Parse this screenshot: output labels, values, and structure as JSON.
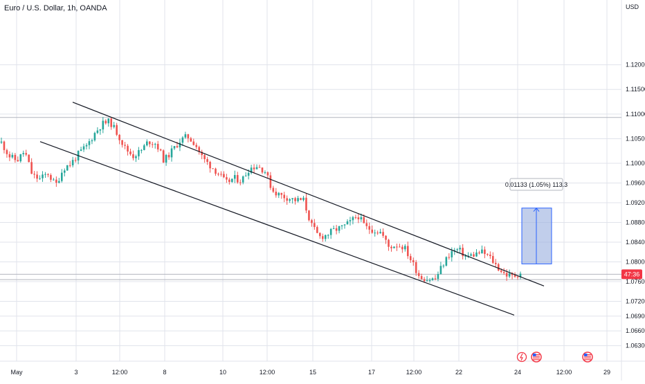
{
  "chart_title": "Euro / U.S. Dollar, 1h, OANDA",
  "currency_label": "USD",
  "price_tag": "47:36",
  "measure_label": "0.01133 (1.05%) 113.3",
  "colors": {
    "up": "#26a69a",
    "down": "#ef5350",
    "measure_fill": "#9fb4e0",
    "measure_stroke": "#2962ff",
    "price_line": "#b2b5be",
    "tag_bg": "#f23645",
    "grid": "#e0e3eb",
    "channel": "#131722"
  },
  "chart_data": {
    "type": "candlestick",
    "title": "Euro / U.S. Dollar, 1h, OANDA",
    "x_tick_labels": [
      "May",
      "3",
      "12:00",
      "8",
      "10",
      "12:00",
      "15",
      "17",
      "12:00",
      "22",
      "24",
      "12:00",
      "29"
    ],
    "y_tick_labels": [
      "1.12000",
      "1.11500",
      "1.11000",
      "1.10500",
      "1.10000",
      "1.09600",
      "1.09200",
      "1.08800",
      "1.08400",
      "1.08000",
      "1.07600",
      "1.07200",
      "1.06900",
      "1.06600",
      "1.06300"
    ],
    "ylim": [
      1.0615,
      1.1245
    ],
    "current_price": 1.0775,
    "horizontal_levels": [
      1.1093,
      1.0775,
      1.0764
    ],
    "channel_upper": {
      "from": {
        "x": "3",
        "y": 1.1124
      },
      "to": {
        "x": "24",
        "y": 1.0775
      }
    },
    "channel_lower": {
      "from": {
        "x": "May",
        "y": 1.1044
      },
      "to": {
        "x": "24",
        "y": 1.0692
      }
    },
    "measure": {
      "from": 1.07959,
      "to": 1.09092,
      "change": "0.01133 (1.05%) 113.3"
    },
    "close_path": [
      1.1042,
      1.1015,
      1.1005,
      1.1025,
      1.0975,
      1.0968,
      1.098,
      1.0955,
      1.099,
      1.1,
      1.102,
      1.1035,
      1.106,
      1.108,
      1.1085,
      1.106,
      1.103,
      1.1015,
      1.1025,
      1.1045,
      1.104,
      1.1005,
      1.1025,
      1.1045,
      1.1055,
      1.104,
      1.101,
      1.0995,
      1.098,
      1.096,
      1.097,
      1.0965,
      1.099,
      1.0995,
      1.0985,
      1.0945,
      1.0935,
      1.093,
      1.0925,
      1.0925,
      1.0875,
      1.085,
      1.0855,
      1.0865,
      1.087,
      1.088,
      1.0895,
      1.087,
      1.0865,
      1.086,
      1.083,
      1.0835,
      1.083,
      1.08,
      1.077,
      1.0765,
      1.0765,
      1.0795,
      1.082,
      1.0825,
      1.081,
      1.0815,
      1.082,
      1.081,
      1.079,
      1.0775,
      1.077,
      1.0778
    ]
  }
}
